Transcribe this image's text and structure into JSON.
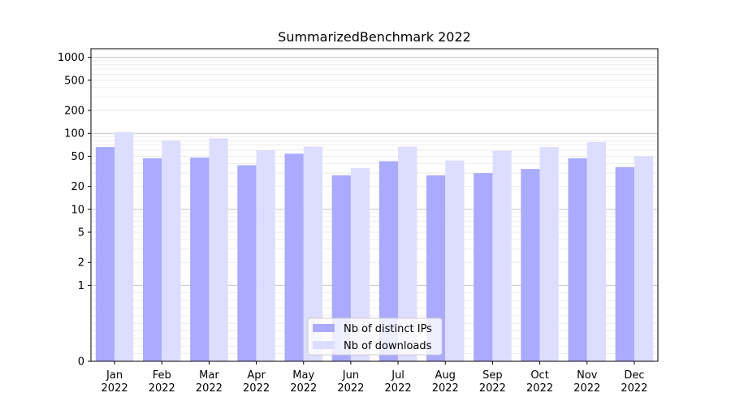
{
  "chart_data": {
    "type": "bar",
    "title": "SummarizedBenchmark 2022",
    "xlabel": "",
    "ylabel": "",
    "y_scale": "symlog",
    "ylim": [
      0,
      1300
    ],
    "y_ticks": [
      0,
      1,
      2,
      5,
      10,
      20,
      50,
      100,
      200,
      500,
      1000
    ],
    "y_tick_labels": [
      "0",
      "1",
      "2",
      "5",
      "10",
      "20",
      "50",
      "100",
      "200",
      "500",
      "1000"
    ],
    "categories": [
      "Jan\n2022",
      "Feb\n2022",
      "Mar\n2022",
      "Apr\n2022",
      "May\n2022",
      "Jun\n2022",
      "Jul\n2022",
      "Aug\n2022",
      "Sep\n2022",
      "Oct\n2022",
      "Nov\n2022",
      "Dec\n2022"
    ],
    "series": [
      {
        "name": "Nb of distinct IPs",
        "color": "#aaaaff",
        "values": [
          66,
          47,
          48,
          38,
          54,
          28,
          43,
          28,
          30,
          34,
          47,
          36
        ]
      },
      {
        "name": "Nb of downloads",
        "color": "#ddddff",
        "values": [
          104,
          80,
          86,
          60,
          67,
          35,
          67,
          44,
          59,
          66,
          77,
          50
        ]
      }
    ],
    "grid": true,
    "legend_position": "bottom-center"
  }
}
